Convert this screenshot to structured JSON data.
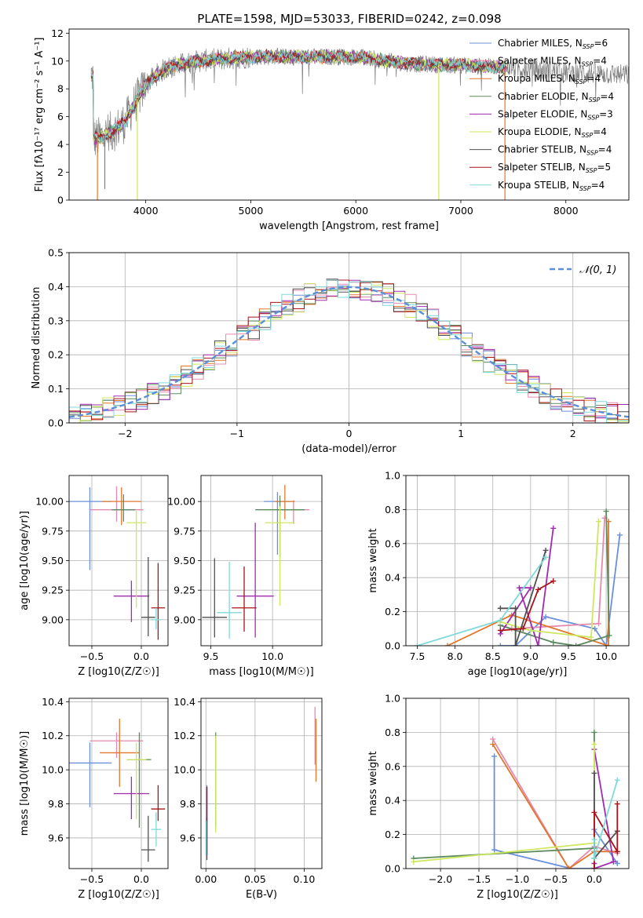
{
  "figure": {
    "title": "PLATE=1598, MJD=53033, FIBERID=0242, z=0.098"
  },
  "legend_models": [
    {
      "name": "Chabrier MILES",
      "nssp": "6",
      "color": "#6a8fdc"
    },
    {
      "name": "Salpeter MILES",
      "nssp": "4",
      "color": "#e58ab0"
    },
    {
      "name": "Kroupa MILES",
      "nssp": "4",
      "color": "#e0772c"
    },
    {
      "name": "Chabrier ELODIE",
      "nssp": "4",
      "color": "#5b8a5f"
    },
    {
      "name": "Salpeter ELODIE",
      "nssp": "3",
      "color": "#a02bb0"
    },
    {
      "name": "Kroupa ELODIE",
      "nssp": "4",
      "color": "#cde85e"
    },
    {
      "name": "Chabrier STELIB",
      "nssp": "4",
      "color": "#505050"
    },
    {
      "name": "Salpeter STELIB",
      "nssp": "5",
      "color": "#a8141a"
    },
    {
      "name": "Kroupa STELIB",
      "nssp": "4",
      "color": "#7fd9d9"
    }
  ],
  "chart_data": [
    {
      "id": "spectrum",
      "type": "line",
      "xlabel": "wavelength [Angstrom, rest frame]",
      "ylabel": "Flux [fλ10⁻¹⁷ erg cm⁻² s⁻¹ A⁻¹]",
      "xlim": [
        3270,
        8600
      ],
      "ylim": [
        0,
        12.3
      ],
      "xticks": [
        "4000",
        "5000",
        "6000",
        "7000",
        "8000"
      ],
      "yticks": [
        "0",
        "2",
        "4",
        "6",
        "8",
        "10",
        "12"
      ],
      "legend_loc": "upper right",
      "continuum": [
        [
          3500,
          4.4
        ],
        [
          3600,
          4.6
        ],
        [
          3700,
          5.0
        ],
        [
          3800,
          5.6
        ],
        [
          3900,
          7.0
        ],
        [
          4000,
          8.3
        ],
        [
          4100,
          9.0
        ],
        [
          4200,
          9.5
        ],
        [
          4300,
          9.7
        ],
        [
          4500,
          10.0
        ],
        [
          5000,
          10.3
        ],
        [
          5500,
          10.3
        ],
        [
          6000,
          10.3
        ],
        [
          6500,
          9.8
        ],
        [
          7000,
          9.7
        ],
        [
          7500,
          9.5
        ],
        [
          8000,
          9.2
        ],
        [
          8600,
          9.0
        ]
      ],
      "data_range": [
        3480,
        8600
      ],
      "model_range": [
        3480,
        7430
      ],
      "dips": [
        {
          "x": 3540,
          "y": 0.0
        },
        {
          "x": 3610,
          "y": 0.8
        },
        {
          "x": 3920,
          "y": 0.0
        },
        {
          "x": 6790,
          "y": 0.0
        },
        {
          "x": 7420,
          "y": 0.0
        }
      ]
    },
    {
      "id": "residuals",
      "type": "step",
      "xlabel": "(data-model)/error",
      "ylabel": "Normed distribution",
      "xlim": [
        -2.5,
        2.5
      ],
      "ylim": [
        0,
        0.5
      ],
      "xticks": [
        "−2",
        "−1",
        "0",
        "1",
        "2"
      ],
      "yticks": [
        "0.0",
        "0.1",
        "0.2",
        "0.3",
        "0.4",
        "0.5"
      ],
      "legend_label": "𝒩(0, 1)",
      "legend_loc": "upper right",
      "reference_curve": {
        "name": "N(0,1)",
        "mean": 0,
        "sigma": 1,
        "color": "#5b8fd9"
      },
      "bin_width": 0.1,
      "bin_start": -2.5,
      "n_bins": 50,
      "jitter_amplitude": 0.035
    },
    {
      "id": "age-vs-Z",
      "type": "errorbar",
      "xlabel": "Z [log10(Z/Z☉)]",
      "ylabel": "age  [log10(age/yr)]",
      "xlim": [
        -0.73,
        0.27
      ],
      "ylim": [
        8.78,
        10.22
      ],
      "xticks": [
        "−0.5",
        "0.0"
      ],
      "yticks": [
        "9.00",
        "9.25",
        "9.50",
        "9.75",
        "10.00",
        "10.25"
      ],
      "points": [
        {
          "x": -0.52,
          "y": 10.0,
          "xerr": 0.22,
          "yerr": [
            0.58,
            0.12
          ],
          "model": 0
        },
        {
          "x": -0.25,
          "y": 9.93,
          "xerr": 0.27,
          "yerr": [
            0.1,
            0.2
          ],
          "model": 1
        },
        {
          "x": -0.2,
          "y": 10.0,
          "xerr": 0.2,
          "yerr": [
            0.2,
            0.12
          ],
          "model": 2
        },
        {
          "x": -0.18,
          "y": 9.93,
          "xerr": 0.12,
          "yerr": [
            0.1,
            0.13
          ],
          "model": 3
        },
        {
          "x": -0.1,
          "y": 9.2,
          "xerr": 0.18,
          "yerr": [
            0.22,
            0.13
          ],
          "model": 4
        },
        {
          "x": -0.05,
          "y": 9.82,
          "xerr": 0.1,
          "yerr": [
            0.72,
            0.1
          ],
          "model": 5
        },
        {
          "x": 0.07,
          "y": 9.02,
          "xerr": 0.07,
          "yerr": [
            0.16,
            0.51
          ],
          "model": 6
        },
        {
          "x": 0.17,
          "y": 9.1,
          "xerr": 0.07,
          "yerr": [
            0.27,
            0.38
          ],
          "model": 7
        },
        {
          "x": 0.15,
          "y": 9.0,
          "xerr": 0.05,
          "yerr": [
            0.08,
            0.1
          ],
          "model": 8
        }
      ]
    },
    {
      "id": "age-vs-mass",
      "type": "errorbar",
      "xlabel": "mass [log10(M/M☉)]",
      "ylabel": "",
      "xlim": [
        9.42,
        10.4
      ],
      "ylim": [
        8.78,
        10.22
      ],
      "xticks": [
        "9.5",
        "10.0"
      ],
      "yticks": [
        "9.00",
        "9.25",
        "9.50",
        "9.75",
        "10.00",
        "10.25"
      ],
      "points": [
        {
          "x": 10.04,
          "y": 10.0,
          "xerr": 0.11,
          "yerr": [
            0.45,
            0.08
          ],
          "model": 0
        },
        {
          "x": 10.17,
          "y": 9.93,
          "xerr": 0.13,
          "yerr": [
            0.12,
            0.08
          ],
          "model": 1
        },
        {
          "x": 10.1,
          "y": 10.0,
          "xerr": 0.08,
          "yerr": [
            0.15,
            0.14
          ],
          "model": 2
        },
        {
          "x": 10.06,
          "y": 9.93,
          "xerr": 0.2,
          "yerr": [
            0.4,
            0.12
          ],
          "model": 3
        },
        {
          "x": 9.86,
          "y": 9.2,
          "xerr": 0.15,
          "yerr": [
            0.35,
            0.62
          ],
          "model": 4
        },
        {
          "x": 10.06,
          "y": 9.82,
          "xerr": 0.12,
          "yerr": [
            0.7,
            0.14
          ],
          "model": 5
        },
        {
          "x": 9.53,
          "y": 9.02,
          "xerr": 0.1,
          "yerr": [
            0.17,
            0.5
          ],
          "model": 6
        },
        {
          "x": 9.77,
          "y": 9.1,
          "xerr": 0.1,
          "yerr": [
            0.2,
            0.35
          ],
          "model": 7
        },
        {
          "x": 9.65,
          "y": 9.06,
          "xerr": 0.1,
          "yerr": [
            0.22,
            0.43
          ],
          "model": 8
        }
      ]
    },
    {
      "id": "mass-weight-vs-age",
      "type": "line",
      "xlabel": "age  [log10(age/yr)]",
      "ylabel": "mass weight",
      "xlim": [
        7.35,
        10.3
      ],
      "ylim": [
        0,
        1.0
      ],
      "xticks": [
        "7.5",
        "8.0",
        "8.5",
        "9.0",
        "9.5",
        "10.0"
      ],
      "yticks": [
        "0.0",
        "0.2",
        "0.4",
        "0.6",
        "0.8",
        "1.0"
      ],
      "series": [
        {
          "model": 0,
          "points": [
            [
              10.18,
              0.65
            ],
            [
              10.0,
              0.0
            ],
            [
              9.85,
              0.1
            ],
            [
              9.2,
              0.17
            ],
            [
              8.8,
              0.0
            ],
            [
              8.6,
              0.0
            ]
          ]
        },
        {
          "model": 1,
          "points": [
            [
              9.98,
              0.75
            ],
            [
              9.9,
              0.13
            ],
            [
              8.75,
              0.1
            ],
            [
              8.6,
              0.12
            ]
          ]
        },
        {
          "model": 2,
          "points": [
            [
              10.03,
              0.73
            ],
            [
              10.03,
              0.0
            ],
            [
              8.75,
              0.18
            ],
            [
              7.9,
              0.0
            ]
          ]
        },
        {
          "model": 3,
          "points": [
            [
              10.0,
              0.79
            ],
            [
              10.04,
              0.06
            ],
            [
              9.6,
              0.0
            ],
            [
              9.3,
              0.02
            ],
            [
              8.6,
              0.12
            ]
          ]
        },
        {
          "model": 4,
          "points": [
            [
              9.3,
              0.69
            ],
            [
              9.1,
              0.0
            ],
            [
              8.85,
              0.34
            ],
            [
              9.0,
              0.34
            ],
            [
              8.6,
              0.07
            ]
          ]
        },
        {
          "model": 5,
          "points": [
            [
              9.9,
              0.73
            ],
            [
              9.8,
              0.05
            ],
            [
              9.0,
              0.09
            ],
            [
              8.6,
              0.14
            ]
          ]
        },
        {
          "model": 6,
          "points": [
            [
              9.2,
              0.56
            ],
            [
              8.8,
              0.0
            ],
            [
              8.8,
              0.22
            ],
            [
              8.6,
              0.22
            ]
          ]
        },
        {
          "model": 7,
          "points": [
            [
              9.3,
              0.38
            ],
            [
              9.1,
              0.33
            ],
            [
              8.9,
              0.1
            ],
            [
              8.6,
              0.09
            ]
          ]
        },
        {
          "model": 8,
          "points": [
            [
              9.2,
              0.52
            ],
            [
              8.6,
              0.15
            ],
            [
              7.5,
              0.0
            ]
          ]
        }
      ]
    },
    {
      "id": "mass-vs-Z",
      "type": "errorbar",
      "xlabel": "Z [log10(Z/Z☉)]",
      "ylabel": "mass [log10(M/M☉)]",
      "xlim": [
        -0.73,
        0.27
      ],
      "ylim": [
        9.42,
        10.42
      ],
      "xticks": [
        "−0.5",
        "0.0"
      ],
      "yticks": [
        "9.6",
        "9.8",
        "10.0",
        "10.2",
        "10.4"
      ],
      "points": [
        {
          "x": -0.52,
          "y": 10.04,
          "xerr": 0.22,
          "yerr": [
            0.26,
            0.12
          ],
          "model": 0
        },
        {
          "x": -0.25,
          "y": 10.17,
          "xerr": 0.27,
          "yerr": [
            0.1,
            0.05
          ],
          "model": 1
        },
        {
          "x": -0.22,
          "y": 10.1,
          "xerr": 0.2,
          "yerr": [
            0.2,
            0.2
          ],
          "model": 2
        },
        {
          "x": -0.02,
          "y": 10.06,
          "xerr": 0.12,
          "yerr": [
            0.4,
            0.16
          ],
          "model": 3
        },
        {
          "x": -0.1,
          "y": 9.86,
          "xerr": 0.18,
          "yerr": [
            0.15,
            0.1
          ],
          "model": 4
        },
        {
          "x": -0.05,
          "y": 10.06,
          "xerr": 0.1,
          "yerr": [
            0.35,
            0.1
          ],
          "model": 5
        },
        {
          "x": 0.07,
          "y": 9.53,
          "xerr": 0.07,
          "yerr": [
            0.07,
            0.2
          ],
          "model": 6
        },
        {
          "x": 0.17,
          "y": 9.77,
          "xerr": 0.07,
          "yerr": [
            0.07,
            0.14
          ],
          "model": 7
        },
        {
          "x": 0.15,
          "y": 9.65,
          "xerr": 0.05,
          "yerr": [
            0.1,
            0.1
          ],
          "model": 8
        }
      ]
    },
    {
      "id": "mass-vs-ebv",
      "type": "errorbar",
      "xlabel": "E(B-V)",
      "ylabel": "",
      "xlim": [
        -0.005,
        0.118
      ],
      "ylim": [
        9.42,
        10.42
      ],
      "xticks": [
        "0.00",
        "0.05",
        "0.10"
      ],
      "yticks": [
        "9.6",
        "9.8",
        "10.0",
        "10.2",
        "10.4"
      ],
      "points": [
        {
          "x": 0.001,
          "y": 9.75,
          "xerr": 0,
          "yerr": [
            0.25,
            0.16
          ],
          "model": 0
        },
        {
          "x": 0.111,
          "y": 10.17,
          "xerr": 0,
          "yerr": [
            0.14,
            0.2
          ],
          "model": 1
        },
        {
          "x": 0.112,
          "y": 10.1,
          "xerr": 0,
          "yerr": [
            0.17,
            0.2
          ],
          "model": 2
        },
        {
          "x": 0.01,
          "y": 10.0,
          "xerr": 0,
          "yerr": [
            0.34,
            0.22
          ],
          "model": 3
        },
        {
          "x": 0.001,
          "y": 9.7,
          "xerr": 0,
          "yerr": [
            0.2,
            0.2
          ],
          "model": 4
        },
        {
          "x": 0.01,
          "y": 9.95,
          "xerr": 0,
          "yerr": [
            0.32,
            0.25
          ],
          "model": 5
        },
        {
          "x": 0.001,
          "y": 9.62,
          "xerr": 0,
          "yerr": [
            0.15,
            0.1
          ],
          "model": 6
        },
        {
          "x": 0.001,
          "y": 9.8,
          "xerr": 0,
          "yerr": [
            0.1,
            0.1
          ],
          "model": 7
        },
        {
          "x": 0.0,
          "y": 9.6,
          "xerr": 0,
          "yerr": [
            0.1,
            0.1
          ],
          "model": 8
        }
      ]
    },
    {
      "id": "mass-weight-vs-Z",
      "type": "line",
      "xlabel": "Z [log10(Z/Z☉)]",
      "ylabel": "mass weight",
      "xlim": [
        -2.45,
        0.45
      ],
      "ylim": [
        0,
        1.0
      ],
      "xticks": [
        "−2.0",
        "−1.5",
        "−1.0",
        "−0.5",
        "0.0"
      ],
      "yticks": [
        "0.0",
        "0.2",
        "0.4",
        "0.6",
        "0.8",
        "1.0"
      ],
      "series": [
        {
          "model": 0,
          "points": [
            [
              -1.3,
              0.66
            ],
            [
              -1.3,
              0.11
            ],
            [
              -0.3,
              0.0
            ],
            [
              0.0,
              0.0
            ],
            [
              0.0,
              0.23
            ],
            [
              0.3,
              0.03
            ]
          ]
        },
        {
          "model": 1,
          "points": [
            [
              -1.32,
              0.76
            ],
            [
              -0.33,
              0.0
            ],
            [
              0.0,
              0.13
            ],
            [
              0.3,
              0.09
            ]
          ]
        },
        {
          "model": 2,
          "points": [
            [
              -1.32,
              0.73
            ],
            [
              -0.33,
              0.0
            ],
            [
              0.0,
              0.1
            ],
            [
              0.3,
              0.1
            ]
          ]
        },
        {
          "model": 3,
          "points": [
            [
              0.0,
              0.8
            ],
            [
              0.0,
              0.12
            ],
            [
              -2.35,
              0.06
            ]
          ]
        },
        {
          "model": 4,
          "points": [
            [
              0.0,
              0.7
            ],
            [
              0.25,
              0.04
            ],
            [
              0.0,
              0.0
            ],
            [
              0.0,
              0.03
            ]
          ]
        },
        {
          "model": 5,
          "points": [
            [
              0.0,
              0.73
            ],
            [
              0.0,
              0.15
            ],
            [
              -2.35,
              0.04
            ]
          ]
        },
        {
          "model": 6,
          "points": [
            [
              0.0,
              0.56
            ],
            [
              0.0,
              0.06
            ],
            [
              0.3,
              0.22
            ]
          ]
        },
        {
          "model": 7,
          "points": [
            [
              0.3,
              0.38
            ],
            [
              0.3,
              0.1
            ],
            [
              0.0,
              0.33
            ],
            [
              0.0,
              0.0
            ]
          ]
        },
        {
          "model": 8,
          "points": [
            [
              0.3,
              0.52
            ],
            [
              0.0,
              0.06
            ],
            [
              0.0,
              0.17
            ]
          ]
        }
      ]
    }
  ]
}
